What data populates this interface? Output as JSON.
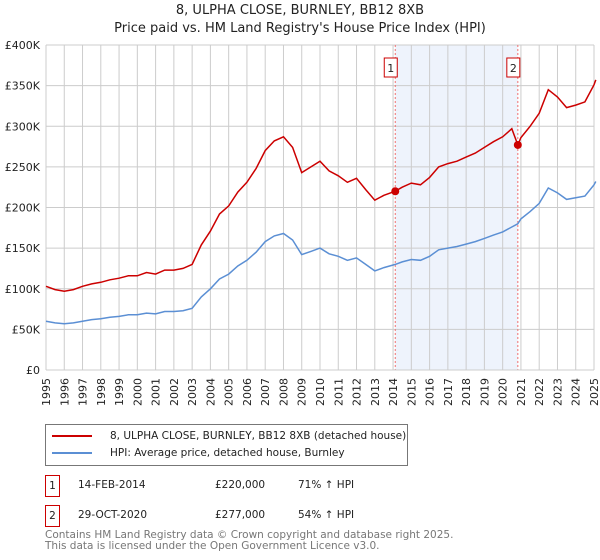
{
  "title": "8, ULPHA CLOSE, BURNLEY, BB12 8XB",
  "subtitle": "Price paid vs. HM Land Registry's House Price Index (HPI)",
  "chart_data": {
    "type": "line",
    "title": "8, ULPHA CLOSE, BURNLEY, BB12 8XB",
    "xlim": [
      1995,
      2025
    ],
    "ylim": [
      0,
      400000
    ],
    "y_ticks": [
      0,
      50000,
      100000,
      150000,
      200000,
      250000,
      300000,
      350000,
      400000
    ],
    "y_tick_labels": [
      "£0",
      "£50K",
      "£100K",
      "£150K",
      "£200K",
      "£250K",
      "£300K",
      "£350K",
      "£400K"
    ],
    "x_ticks": [
      "1995",
      "1996",
      "1997",
      "1998",
      "1999",
      "2000",
      "2001",
      "2002",
      "2003",
      "2004",
      "2005",
      "2006",
      "2007",
      "2008",
      "2009",
      "2010",
      "2011",
      "2012",
      "2013",
      "2014",
      "2015",
      "2016",
      "2017",
      "2018",
      "2019",
      "2020",
      "2021",
      "2022",
      "2023",
      "2024",
      "2025"
    ],
    "grid": true,
    "shaded_region": [
      2014.12,
      2020.83
    ],
    "series": [
      {
        "name": "8, ULPHA CLOSE, BURNLEY, BB12 8XB (detached house)",
        "color": "#cc0000",
        "x": [
          1995,
          1995.5,
          1996,
          1996.5,
          1997,
          1997.5,
          1998,
          1998.5,
          1999,
          1999.5,
          2000,
          2000.5,
          2001,
          2001.5,
          2002,
          2002.5,
          2003,
          2003.5,
          2004,
          2004.5,
          2005,
          2005.5,
          2006,
          2006.5,
          2007,
          2007.5,
          2008,
          2008.5,
          2009,
          2009.5,
          2010,
          2010.5,
          2011,
          2011.5,
          2012,
          2012.5,
          2013,
          2013.5,
          2014.12,
          2014.5,
          2015,
          2015.5,
          2016,
          2016.5,
          2017,
          2017.5,
          2018,
          2018.5,
          2019,
          2019.5,
          2020,
          2020.5,
          2020.83,
          2021,
          2021.5,
          2022,
          2022.5,
          2023,
          2023.5,
          2024,
          2024.5,
          2025,
          2025.1
        ],
        "y": [
          103000,
          99000,
          97000,
          99000,
          103000,
          106000,
          108000,
          111000,
          113000,
          116000,
          116000,
          120000,
          118000,
          123000,
          123000,
          125000,
          130000,
          154000,
          171000,
          192000,
          202000,
          219000,
          231000,
          248000,
          270000,
          282000,
          287000,
          274000,
          243000,
          250000,
          257000,
          245000,
          239000,
          231000,
          236000,
          222000,
          209000,
          215000,
          220000,
          225000,
          230000,
          228000,
          237000,
          250000,
          254000,
          257000,
          262000,
          267000,
          274000,
          281000,
          287000,
          297000,
          277000,
          286000,
          300000,
          316000,
          345000,
          336000,
          323000,
          326000,
          330000,
          351000,
          357000
        ]
      },
      {
        "name": "HPI: Average price, detached house, Burnley",
        "color": "#5b8fd4",
        "x": [
          1995,
          1995.5,
          1996,
          1996.5,
          1997,
          1997.5,
          1998,
          1998.5,
          1999,
          1999.5,
          2000,
          2000.5,
          2001,
          2001.5,
          2002,
          2002.5,
          2003,
          2003.5,
          2004,
          2004.5,
          2005,
          2005.5,
          2006,
          2006.5,
          2007,
          2007.5,
          2008,
          2008.5,
          2009,
          2009.5,
          2010,
          2010.5,
          2011,
          2011.5,
          2012,
          2012.5,
          2013,
          2013.5,
          2014.12,
          2014.5,
          2015,
          2015.5,
          2016,
          2016.5,
          2017,
          2017.5,
          2018,
          2018.5,
          2019,
          2019.5,
          2020,
          2020.5,
          2020.83,
          2021,
          2021.5,
          2022,
          2022.5,
          2023,
          2023.5,
          2024,
          2024.5,
          2025,
          2025.1
        ],
        "y": [
          60000,
          58000,
          57000,
          58000,
          60000,
          62000,
          63000,
          65000,
          66000,
          68000,
          68000,
          70000,
          69000,
          72000,
          72000,
          73000,
          76000,
          90000,
          100000,
          112000,
          118000,
          128000,
          135000,
          145000,
          158000,
          165000,
          168000,
          160000,
          142000,
          146000,
          150000,
          143000,
          140000,
          135000,
          138000,
          130000,
          122000,
          126000,
          130000,
          133000,
          136000,
          135000,
          140000,
          148000,
          150000,
          152000,
          155000,
          158000,
          162000,
          166000,
          170000,
          176000,
          180000,
          186000,
          195000,
          205000,
          224000,
          218000,
          210000,
          212000,
          214000,
          228000,
          232000
        ]
      }
    ],
    "markers": [
      {
        "label": "1",
        "x": 2014.12,
        "y": 220000
      },
      {
        "label": "2",
        "x": 2020.83,
        "y": 277000
      }
    ]
  },
  "legend": [
    {
      "label": "8, ULPHA CLOSE, BURNLEY, BB12 8XB (detached house)",
      "color": "#cc0000"
    },
    {
      "label": "HPI: Average price, detached house, Burnley",
      "color": "#5b8fd4"
    }
  ],
  "sales": [
    {
      "num": "1",
      "date": "14-FEB-2014",
      "price": "£220,000",
      "hpi": "71% ↑ HPI"
    },
    {
      "num": "2",
      "date": "29-OCT-2020",
      "price": "£277,000",
      "hpi": "54% ↑ HPI"
    }
  ],
  "footer": [
    "Contains HM Land Registry data © Crown copyright and database right 2025.",
    "This data is licensed under the Open Government Licence v3.0."
  ]
}
